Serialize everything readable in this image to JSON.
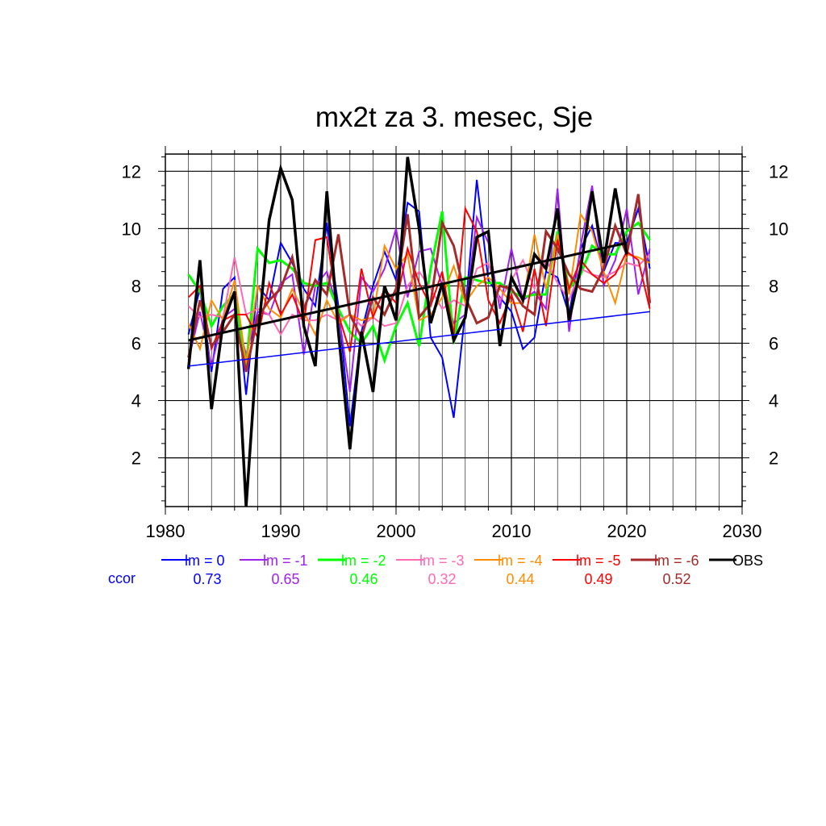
{
  "chart_data": {
    "type": "line",
    "title": "mx2t za 3. mesec, Sje",
    "xlim": [
      1980,
      2030
    ],
    "ylim": [
      0.3,
      12.6
    ],
    "x_ticks": [
      1980,
      1990,
      2000,
      2010,
      2020,
      2030
    ],
    "y_ticks": [
      2,
      4,
      6,
      8,
      10,
      12
    ],
    "grid": true,
    "legend_position": "bottom",
    "ccor_label": "ccor",
    "x": [
      1982,
      1983,
      1984,
      1985,
      1986,
      1987,
      1988,
      1989,
      1990,
      1991,
      1992,
      1993,
      1994,
      1995,
      1996,
      1997,
      1998,
      1999,
      2000,
      2001,
      2002,
      2003,
      2004,
      2005,
      2006,
      2007,
      2008,
      2009,
      2010,
      2011,
      2012,
      2013,
      2014,
      2015,
      2016,
      2017,
      2018,
      2019,
      2020,
      2021,
      2022
    ],
    "series": [
      {
        "name": "lm = 0",
        "color": "#0000ff",
        "width": 2,
        "ccor": "0.73",
        "values": [
          6.3,
          7.9,
          5.0,
          7.9,
          8.3,
          4.2,
          8.0,
          7.5,
          9.5,
          8.8,
          7.9,
          7.3,
          10.2,
          7.3,
          3.1,
          6.4,
          8.0,
          9.2,
          8.2,
          10.9,
          10.6,
          6.2,
          5.5,
          3.4,
          7.1,
          11.7,
          8.2,
          7.6,
          7.1,
          5.8,
          6.2,
          8.5,
          8.3,
          7.0,
          9.3,
          10.1,
          8.5,
          9.5,
          9.5,
          10.7,
          8.6
        ]
      },
      {
        "name": "lm = -1",
        "color": "#a020f0",
        "width": 2,
        "ccor": "0.65",
        "values": [
          5.4,
          7.1,
          5.2,
          6.9,
          7.2,
          5.6,
          7.1,
          7.0,
          8.1,
          8.4,
          5.6,
          8.0,
          8.5,
          7.1,
          4.3,
          8.3,
          7.8,
          8.6,
          10.0,
          7.6,
          9.2,
          9.3,
          8.0,
          6.7,
          7.0,
          10.4,
          9.5,
          7.2,
          9.3,
          7.5,
          7.8,
          7.2,
          11.4,
          6.4,
          9.4,
          11.5,
          8.0,
          8.9,
          10.7,
          7.7,
          9.3
        ]
      },
      {
        "name": "lm = -2",
        "color": "#00ff00",
        "width": 3,
        "ccor": "0.46",
        "values": [
          8.4,
          7.8,
          6.6,
          7.3,
          7.7,
          5.2,
          9.3,
          8.8,
          8.9,
          8.6,
          8.1,
          8.0,
          8.1,
          7.2,
          6.4,
          6.0,
          6.6,
          5.4,
          6.6,
          7.4,
          5.9,
          8.6,
          10.6,
          6.0,
          8.3,
          8.2,
          8.1,
          8.1,
          7.8,
          7.6,
          7.7,
          7.7,
          9.9,
          7.9,
          8.4,
          9.4,
          9.1,
          9.1,
          9.9,
          10.2,
          9.6
        ]
      },
      {
        "name": "lm = -3",
        "color": "#ff69b4",
        "width": 2,
        "ccor": "0.32",
        "values": [
          7.3,
          6.9,
          7.0,
          6.9,
          9.0,
          7.0,
          7.2,
          7.0,
          6.3,
          7.0,
          6.8,
          6.8,
          7.0,
          6.8,
          7.0,
          6.6,
          6.9,
          6.6,
          6.7,
          8.0,
          8.5,
          7.9,
          7.2,
          7.5,
          7.3,
          8.6,
          8.8,
          7.5,
          8.2,
          8.9,
          7.9,
          8.9,
          8.1,
          7.5,
          8.6,
          8.4,
          8.3,
          8.5,
          8.8,
          8.7,
          9.1
        ]
      },
      {
        "name": "lm = -4",
        "color": "#ff8c00",
        "width": 2,
        "ccor": "0.44",
        "values": [
          6.7,
          5.8,
          7.5,
          6.8,
          8.2,
          5.3,
          8.0,
          7.2,
          6.9,
          7.9,
          7.1,
          6.3,
          7.5,
          6.7,
          7.0,
          6.8,
          6.9,
          9.4,
          8.6,
          9.1,
          6.8,
          7.0,
          7.6,
          8.7,
          7.4,
          8.0,
          8.3,
          7.9,
          7.4,
          7.4,
          9.8,
          7.9,
          9.8,
          7.7,
          10.5,
          9.9,
          8.5,
          7.4,
          9.1,
          9.0,
          8.8
        ]
      },
      {
        "name": "lm = -5",
        "color": "#ff0000",
        "width": 2,
        "ccor": "0.49",
        "values": [
          7.6,
          8.0,
          5.8,
          6.8,
          7.0,
          7.0,
          6.2,
          8.1,
          7.0,
          7.7,
          6.7,
          9.6,
          9.7,
          7.0,
          5.7,
          8.6,
          6.9,
          7.9,
          7.4,
          9.3,
          8.1,
          7.3,
          8.5,
          6.3,
          10.7,
          9.9,
          7.5,
          6.7,
          7.7,
          6.4,
          8.6,
          6.6,
          9.6,
          7.9,
          8.9,
          8.4,
          8.1,
          8.4,
          9.2,
          8.9,
          7.2
        ]
      },
      {
        "name": "lm = -6",
        "color": "#a52a2a",
        "width": 3,
        "ccor": "0.52",
        "values": [
          5.5,
          7.5,
          5.9,
          6.4,
          7.0,
          5.0,
          6.9,
          7.5,
          7.9,
          9.0,
          7.2,
          8.2,
          7.7,
          9.8,
          7.0,
          6.2,
          7.6,
          7.0,
          7.9,
          10.5,
          6.9,
          7.4,
          10.2,
          9.4,
          7.6,
          6.7,
          6.9,
          8.0,
          7.9,
          7.3,
          7.0,
          9.9,
          9.3,
          8.4,
          7.9,
          7.8,
          8.6,
          10.1,
          9.1,
          11.2,
          7.4
        ]
      },
      {
        "name": "OBS",
        "color": "#000000",
        "width": 3.5,
        "ccor": "",
        "values": [
          5.1,
          8.9,
          3.7,
          6.7,
          7.8,
          0.3,
          6.1,
          10.3,
          12.1,
          11.0,
          6.6,
          5.2,
          11.3,
          6.4,
          2.3,
          6.4,
          4.3,
          8.0,
          6.8,
          12.5,
          10.0,
          6.7,
          8.1,
          6.1,
          6.9,
          9.7,
          9.9,
          5.9,
          8.3,
          7.5,
          9.1,
          8.6,
          10.7,
          6.8,
          8.6,
          11.3,
          8.8,
          11.4,
          9.1,
          null,
          null
        ]
      }
    ],
    "trend_lines": [
      {
        "series": "lm = 0",
        "color": "#0000ff",
        "width": 1.5,
        "x": [
          1982,
          2022
        ],
        "y": [
          5.2,
          7.1
        ]
      },
      {
        "series": "OBS",
        "color": "#000000",
        "width": 3,
        "x": [
          1982,
          2020
        ],
        "y": [
          6.1,
          9.5
        ]
      }
    ]
  }
}
